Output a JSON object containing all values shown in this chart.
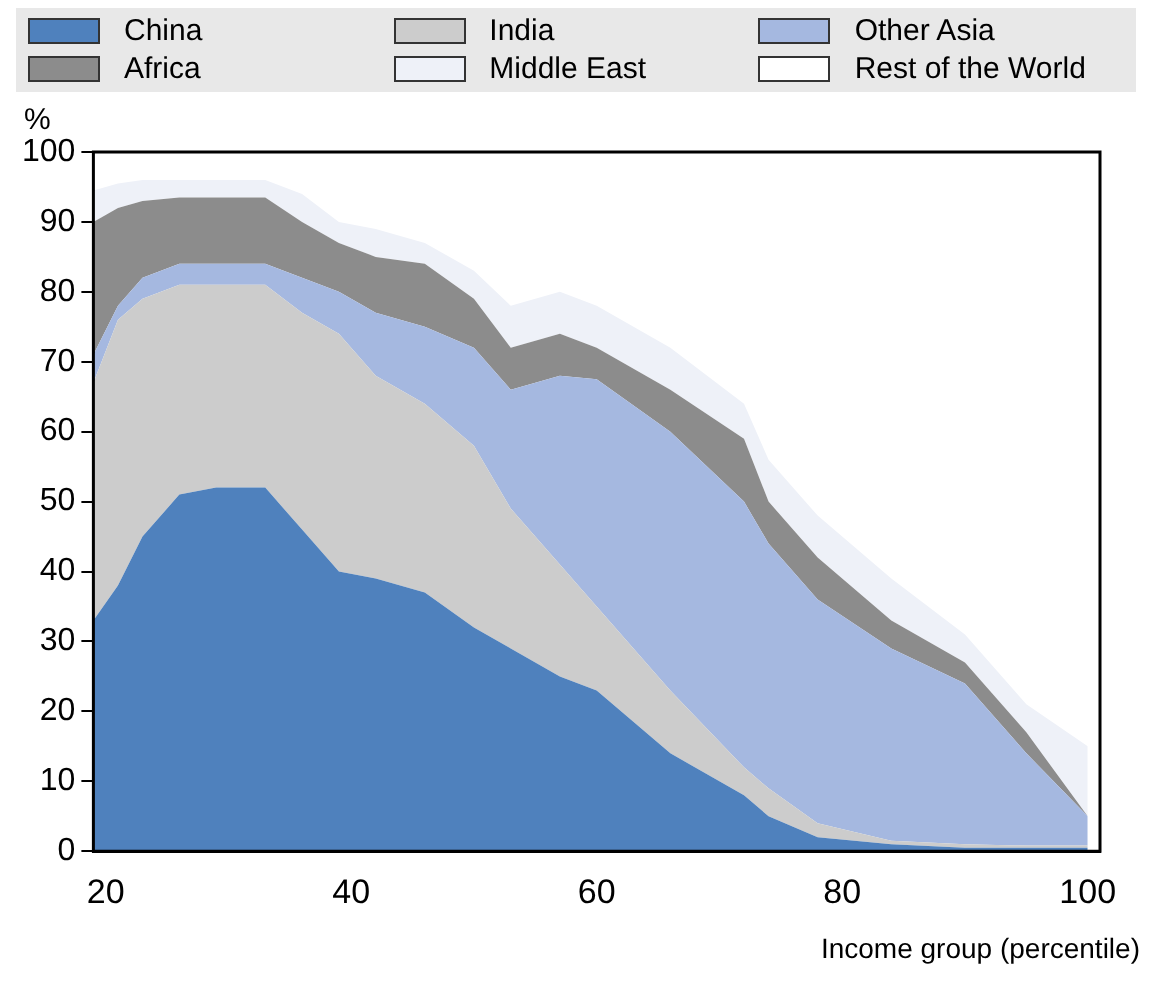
{
  "chart_data": {
    "type": "area",
    "stacked": true,
    "ylabel": "%",
    "xlabel": "Income group (percentile)",
    "legend": "top",
    "grid": false,
    "x": [
      19,
      21,
      23,
      26,
      29,
      33,
      36,
      39,
      42,
      46,
      50,
      53,
      57,
      60,
      66,
      72,
      74,
      78,
      84,
      90,
      95,
      100
    ],
    "xlim": [
      19,
      101
    ],
    "xticks": [
      20,
      40,
      60,
      80,
      100
    ],
    "ylim": [
      0,
      100
    ],
    "yticks": [
      0,
      10,
      20,
      30,
      40,
      50,
      60,
      70,
      80,
      90,
      100
    ],
    "series": [
      {
        "name": "China",
        "color": "#4f81bd",
        "values": [
          33,
          38,
          45,
          51,
          52,
          52,
          46,
          40,
          39,
          37,
          32,
          29,
          25,
          23,
          14,
          8,
          5,
          2,
          1,
          0.5,
          0.5,
          0.5
        ]
      },
      {
        "name": "India",
        "color": "#cccccc",
        "values": [
          34,
          38,
          34,
          30,
          29,
          29,
          31,
          34,
          29,
          27,
          26,
          20,
          16,
          12,
          9,
          4,
          4,
          2,
          0.5,
          0.5,
          0.3,
          0.3
        ]
      },
      {
        "name": "Other Asia",
        "color": "#a5b8e0",
        "values": [
          4,
          2,
          3,
          3,
          3,
          3,
          5,
          6,
          9,
          11,
          14,
          17,
          27,
          32.5,
          37,
          38,
          35,
          32,
          27.5,
          23,
          13.2,
          4.2
        ]
      },
      {
        "name": "Africa",
        "color": "#8c8c8c",
        "values": [
          19,
          14,
          11,
          9.5,
          9.5,
          9.5,
          8,
          7,
          8,
          9,
          7,
          6,
          6,
          4.5,
          6,
          9,
          6,
          6,
          4,
          3,
          3,
          0
        ]
      },
      {
        "name": "Middle East",
        "color": "#eef1f8",
        "values": [
          4.5,
          3.5,
          3,
          2.5,
          2.5,
          2.5,
          4,
          3,
          4,
          3,
          4,
          6,
          6,
          6,
          6,
          5,
          6,
          6,
          6,
          4,
          4,
          10
        ]
      },
      {
        "name": "Rest of the World",
        "color": "#ffffff",
        "values": [
          5.5,
          4.5,
          4,
          4,
          4,
          4,
          6,
          10,
          11,
          13,
          17,
          22,
          20,
          22,
          28,
          36,
          44,
          52,
          61,
          69,
          79,
          85
        ]
      }
    ]
  }
}
